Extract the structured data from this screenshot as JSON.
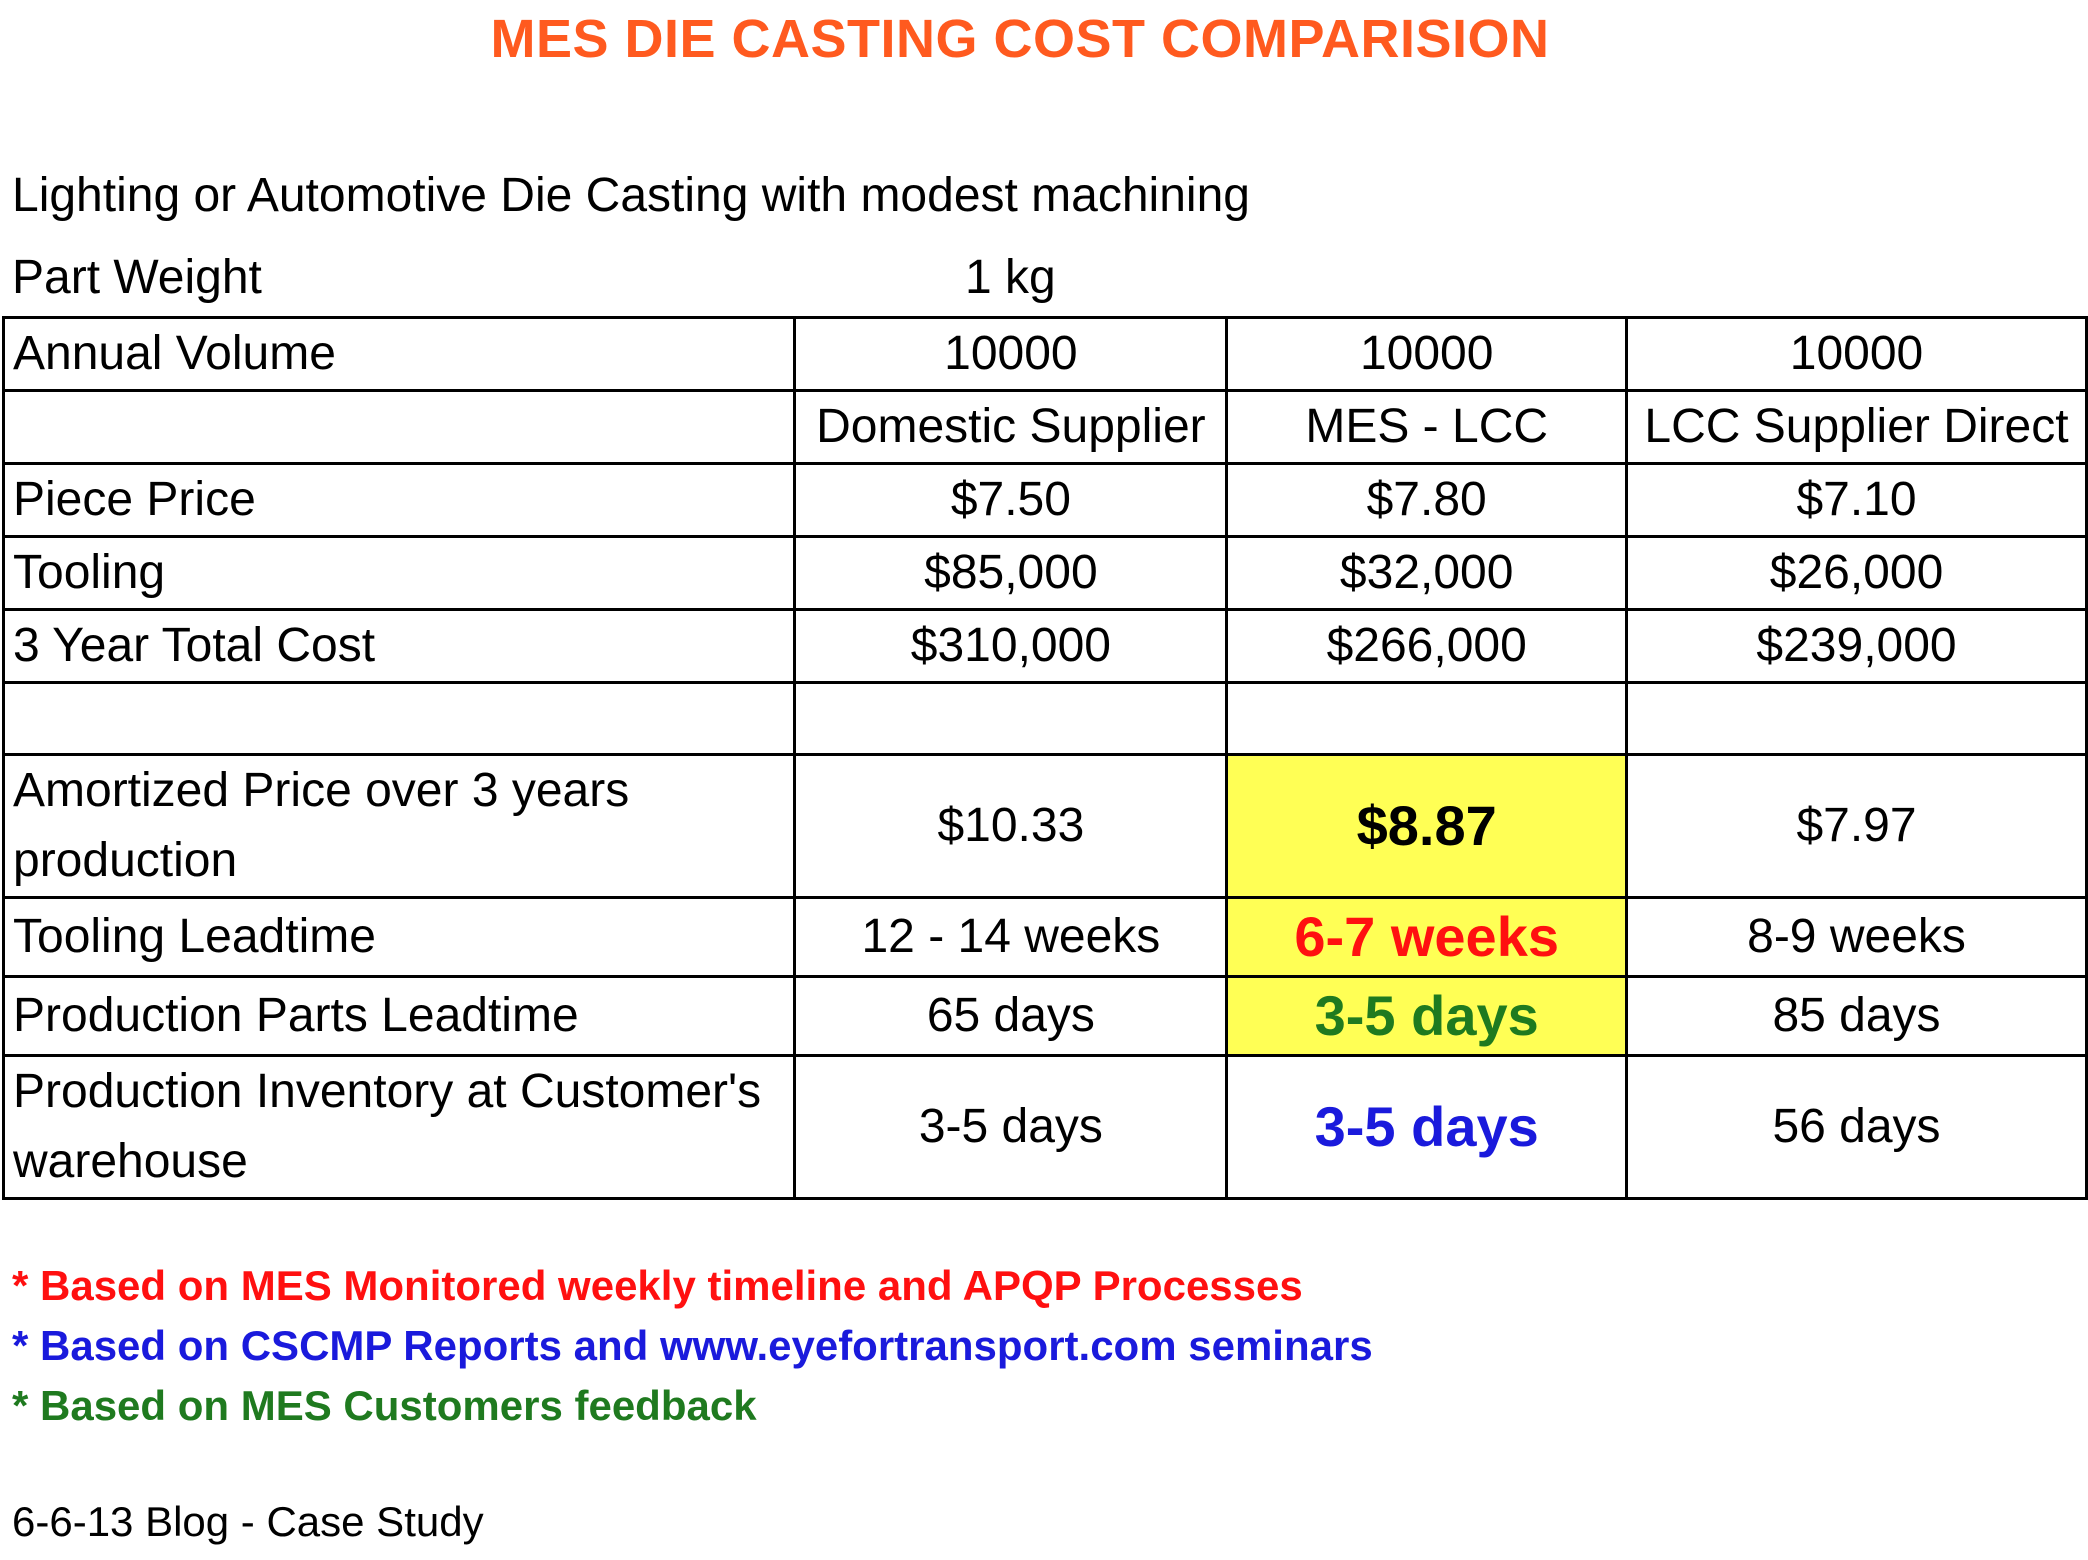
{
  "title": "MES DIE CASTING COST COMPARISION",
  "description": "Lighting or Automotive Die Casting with modest machining",
  "part_weight": {
    "label": "Part Weight",
    "value": "1 kg"
  },
  "table": {
    "annual_volume": {
      "label": "Annual Volume",
      "values": [
        "10000",
        "10000",
        "10000"
      ]
    },
    "suppliers": [
      "Domestic Supplier",
      "MES - LCC",
      "LCC Supplier Direct"
    ],
    "piece_price": {
      "label": "Piece Price",
      "values": [
        "$7.50",
        "$7.80",
        "$7.10"
      ]
    },
    "tooling": {
      "label": "Tooling",
      "values": [
        "$85,000",
        "$32,000",
        "$26,000"
      ]
    },
    "total_cost": {
      "label": "3 Year Total Cost",
      "values": [
        "$310,000",
        "$266,000",
        "$239,000"
      ]
    },
    "amortized": {
      "label": "Amortized Price over 3 years production",
      "values": [
        "$10.33",
        "$8.87",
        "$7.97"
      ]
    },
    "tooling_leadtime": {
      "label": "Tooling Leadtime",
      "values": [
        "12 - 14 weeks",
        "6-7 weeks",
        "8-9 weeks"
      ]
    },
    "parts_leadtime": {
      "label": "Production Parts Leadtime",
      "values": [
        "65 days",
        "3-5 days",
        "85 days"
      ]
    },
    "inventory": {
      "label": "Production Inventory at Customer's warehouse",
      "values": [
        "3-5 days",
        "3-5 days",
        "56 days"
      ]
    }
  },
  "notes": [
    {
      "text": "* Based on MES Monitored weekly timeline and APQP Processes",
      "color": "#ff1010"
    },
    {
      "text": "* Based on CSCMP Reports and www.eyefortransport.com seminars",
      "color": "#1a1adc"
    },
    {
      "text": "* Based on MES Customers feedback",
      "color": "#1f7a1f"
    }
  ],
  "footer": "6-6-13 Blog - Case Study",
  "colors": {
    "title": "#ff5a1f",
    "highlight": "#ffff55"
  }
}
